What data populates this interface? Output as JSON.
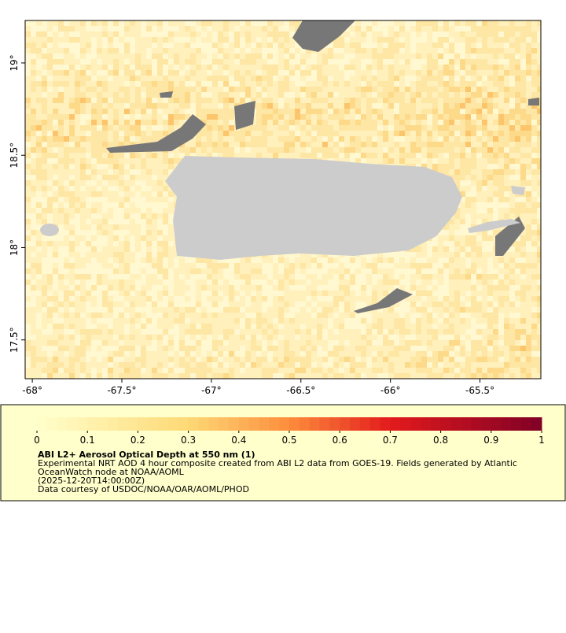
{
  "map": {
    "xlim": [
      -68.04,
      -65.16
    ],
    "ylim": [
      17.29,
      19.23
    ],
    "xticks": [
      {
        "value": -68,
        "label": "-68°"
      },
      {
        "value": -67.5,
        "label": "-67.5°"
      },
      {
        "value": -67,
        "label": "-67°"
      },
      {
        "value": -66.5,
        "label": "-66.5°"
      },
      {
        "value": -66,
        "label": "-66°"
      },
      {
        "value": -65.5,
        "label": "-65.5°"
      }
    ],
    "yticks": [
      {
        "value": 19,
        "label": "19°"
      },
      {
        "value": 18.5,
        "label": "18.5°"
      },
      {
        "value": 18,
        "label": "18°"
      },
      {
        "value": 17.5,
        "label": "17.5°"
      }
    ]
  },
  "colorbar": {
    "range": [
      0,
      1
    ],
    "ticks": [
      0,
      0.1,
      0.2,
      0.3,
      0.4,
      0.5,
      0.6,
      0.7,
      0.8,
      0.9,
      1
    ]
  },
  "caption": {
    "title": "ABI L2+ Aerosol Optical Depth at 550 nm (1)",
    "lines": [
      "Experimental NRT AOD 4 hour composite created from ABI L2 data from GOES-19. Fields generated by Atlantic",
      "OceanWatch node at NOAA/AOML",
      "(2025-12-20T14:00:00Z)",
      "Data courtesy of USDOC/NOAA/OAR/AOML/PHOD"
    ]
  }
}
